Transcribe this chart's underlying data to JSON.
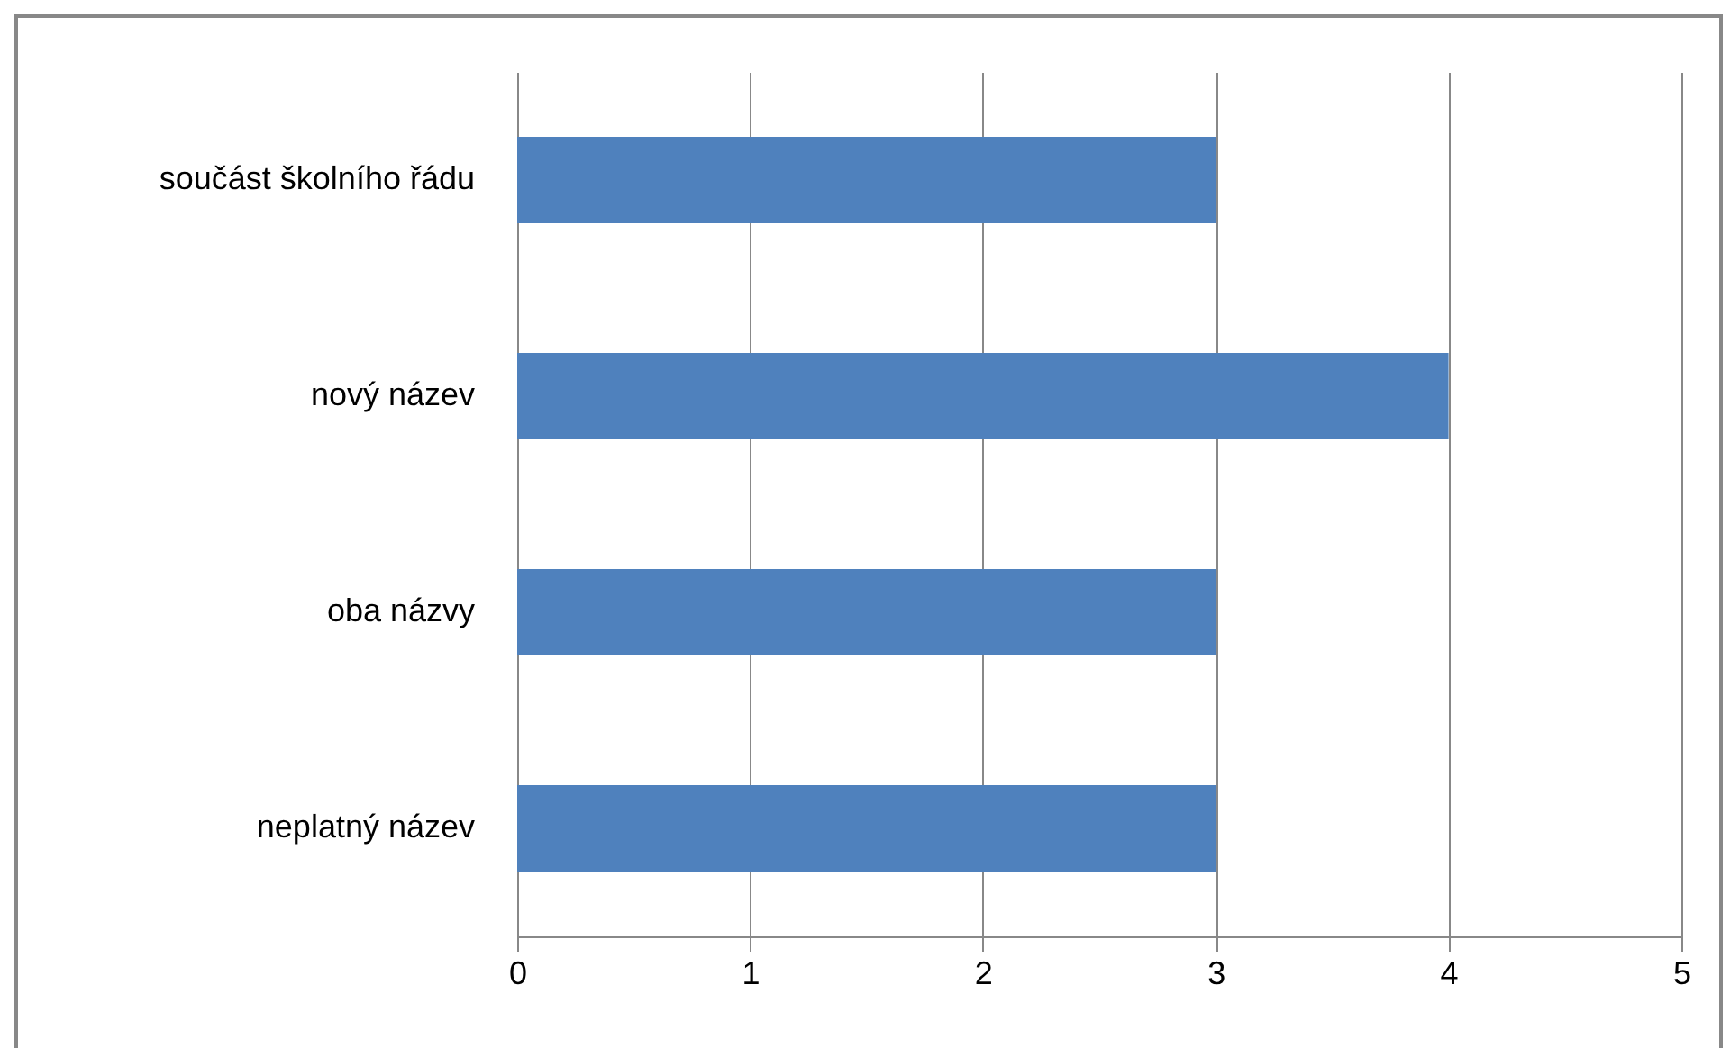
{
  "chart_data": {
    "type": "bar",
    "orientation": "horizontal",
    "categories": [
      "součást školního řádu",
      "nový název",
      "oba názvy",
      "neplatný název"
    ],
    "values": [
      3,
      4,
      3,
      3
    ],
    "color": "#4f81bd",
    "xlim": [
      0,
      5
    ],
    "xticks": [
      0,
      1,
      2,
      3,
      4,
      5
    ],
    "grid": "x"
  }
}
